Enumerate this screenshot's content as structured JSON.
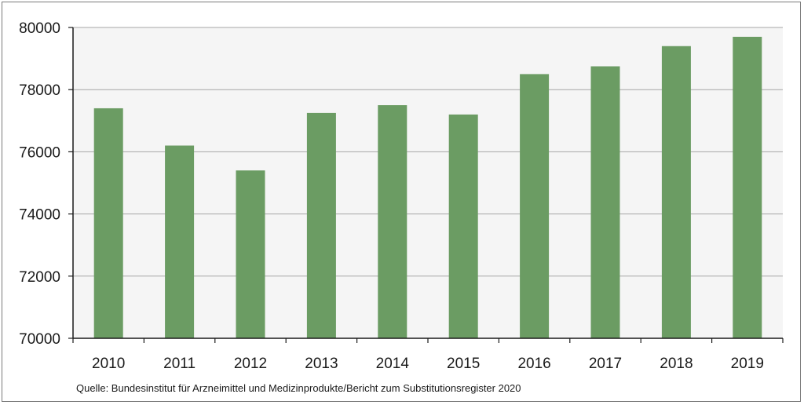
{
  "chart_data": {
    "type": "bar",
    "categories": [
      "2010",
      "2011",
      "2012",
      "2013",
      "2014",
      "2015",
      "2016",
      "2017",
      "2018",
      "2019"
    ],
    "values": [
      77400,
      76200,
      75400,
      77250,
      77500,
      77200,
      78500,
      78750,
      79400,
      79700
    ],
    "ylim": [
      70000,
      80000
    ],
    "yticks": [
      70000,
      72000,
      74000,
      76000,
      78000,
      80000
    ],
    "grid": true,
    "bar_color": "#6b9c63",
    "plot_background": "#f5f5f5",
    "gridline_color": "#a6a6a6"
  },
  "source": "Quelle: Bundesinstitut für Arzneimittel und Medizinprodukte/Bericht zum Substitutionsregister 2020"
}
